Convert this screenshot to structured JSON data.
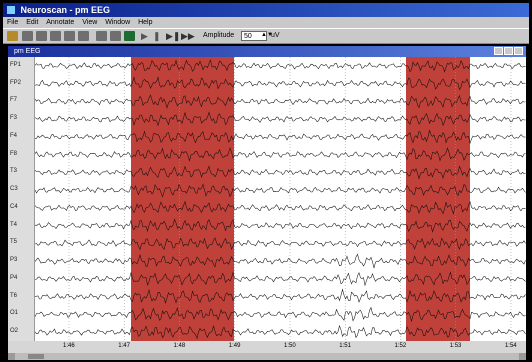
{
  "window": {
    "title": "Neuroscan - pm EEG"
  },
  "menu": [
    "File",
    "Edit",
    "Annotate",
    "View",
    "Window",
    "Help"
  ],
  "toolbar": {
    "amplitude_label": "Amplitude",
    "amplitude_value": "50",
    "unit": "uV"
  },
  "document": {
    "title": "pm EEG"
  },
  "channels": [
    "FP1",
    "FP2",
    "F7",
    "F3",
    "F4",
    "F8",
    "T3",
    "C3",
    "C4",
    "T4",
    "T5",
    "P3",
    "P4",
    "T6",
    "O1",
    "O2"
  ],
  "time_axis": {
    "ticks": [
      "1:46",
      "1:47",
      "1:48",
      "1:49",
      "1:50",
      "1:51",
      "1:52",
      "1:53",
      "1:54"
    ]
  },
  "highlight_color": "#c0403a"
}
